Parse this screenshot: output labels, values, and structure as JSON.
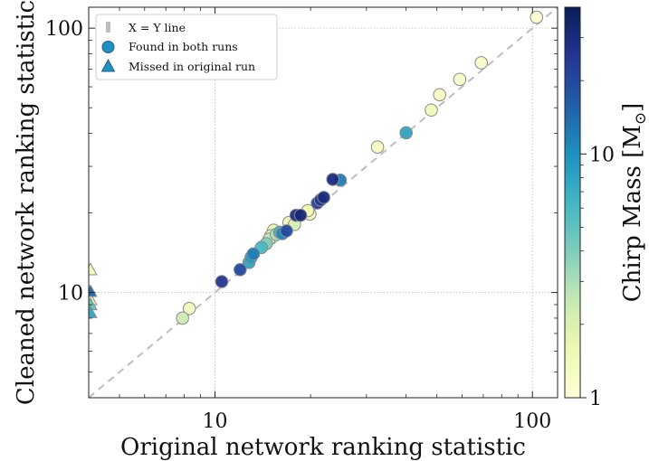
{
  "chart_data": {
    "type": "scatter",
    "xlabel": "Original network ranking statistic",
    "ylabel": "Cleaned network ranking statistic",
    "xscale": "log",
    "yscale": "log",
    "xlim": [
      4,
      120
    ],
    "ylim": [
      4,
      120
    ],
    "xticks": [
      {
        "value": 10,
        "label": "10"
      },
      {
        "value": 100,
        "label": "100"
      }
    ],
    "yticks": [
      {
        "value": 10,
        "label": "10"
      },
      {
        "value": 100,
        "label": "100"
      }
    ],
    "grid": true,
    "legend_position": "top-left",
    "legend": [
      {
        "key": "xy",
        "label": "X = Y line"
      },
      {
        "key": "found",
        "label": "Found in both runs"
      },
      {
        "key": "missed",
        "label": "Missed in original run"
      }
    ],
    "colorbar": {
      "label": "Chirp Mass [M",
      "label_subscript": "⊙",
      "label_suffix": "]",
      "scale": "log",
      "range": [
        1,
        40
      ],
      "ticks": [
        {
          "value": 1,
          "label": "1"
        },
        {
          "value": 10,
          "label": "10"
        }
      ],
      "colors": [
        "#ffffd9",
        "#edf8b1",
        "#c7e9b4",
        "#7fcdbb",
        "#41b6c4",
        "#1d91c0",
        "#225ea8",
        "#253494",
        "#081d58"
      ]
    },
    "series": [
      {
        "name": "Found in both runs",
        "marker": "circle",
        "points": [
          {
            "x": 7.9,
            "y": 8.0,
            "m": 2.3
          },
          {
            "x": 8.3,
            "y": 8.7,
            "m": 1.4
          },
          {
            "x": 10.5,
            "y": 11.0,
            "m": 25
          },
          {
            "x": 12.0,
            "y": 12.2,
            "m": 20
          },
          {
            "x": 12.8,
            "y": 13.0,
            "m": 8
          },
          {
            "x": 13.0,
            "y": 13.6,
            "m": 9
          },
          {
            "x": 13.2,
            "y": 14.0,
            "m": 12
          },
          {
            "x": 14.0,
            "y": 14.8,
            "m": 6
          },
          {
            "x": 14.5,
            "y": 15.3,
            "m": 4
          },
          {
            "x": 14.8,
            "y": 15.9,
            "m": 2.5
          },
          {
            "x": 15.0,
            "y": 16.4,
            "m": 1.8
          },
          {
            "x": 15.3,
            "y": 17.2,
            "m": 1.6
          },
          {
            "x": 15.6,
            "y": 16.6,
            "m": 3
          },
          {
            "x": 16.0,
            "y": 16.9,
            "m": 7
          },
          {
            "x": 16.3,
            "y": 16.7,
            "m": 11
          },
          {
            "x": 16.8,
            "y": 17.1,
            "m": 20
          },
          {
            "x": 17.1,
            "y": 18.4,
            "m": 1.5
          },
          {
            "x": 17.8,
            "y": 18.1,
            "m": 2
          },
          {
            "x": 18.0,
            "y": 19.6,
            "m": 28
          },
          {
            "x": 18.6,
            "y": 19.6,
            "m": 32
          },
          {
            "x": 19.6,
            "y": 20.4,
            "m": 1.5
          },
          {
            "x": 19.9,
            "y": 19.8,
            "m": 1.3
          },
          {
            "x": 21.0,
            "y": 21.8,
            "m": 22
          },
          {
            "x": 21.5,
            "y": 22.4,
            "m": 25
          },
          {
            "x": 22.0,
            "y": 22.9,
            "m": 30
          },
          {
            "x": 23.5,
            "y": 26.8,
            "m": 30
          },
          {
            "x": 24.8,
            "y": 26.6,
            "m": 12
          },
          {
            "x": 32.5,
            "y": 35.5,
            "m": 1.3
          },
          {
            "x": 40.0,
            "y": 40.2,
            "m": 8
          },
          {
            "x": 48.0,
            "y": 49.0,
            "m": 1.4
          },
          {
            "x": 51.0,
            "y": 56.0,
            "m": 1.3
          },
          {
            "x": 59.0,
            "y": 64.0,
            "m": 1.2
          },
          {
            "x": 69.0,
            "y": 74.0,
            "m": 1.2
          },
          {
            "x": 103.0,
            "y": 110.0,
            "m": 1.1
          }
        ]
      },
      {
        "name": "Missed in original run",
        "marker": "triangle",
        "points": [
          {
            "x": 4.05,
            "y": 12.2,
            "m": 1.4
          },
          {
            "x": 4.05,
            "y": 10.1,
            "m": 15
          },
          {
            "x": 4.05,
            "y": 9.4,
            "m": 1.6
          },
          {
            "x": 4.05,
            "y": 9.0,
            "m": 5
          },
          {
            "x": 4.05,
            "y": 8.4,
            "m": 8
          }
        ]
      }
    ]
  }
}
